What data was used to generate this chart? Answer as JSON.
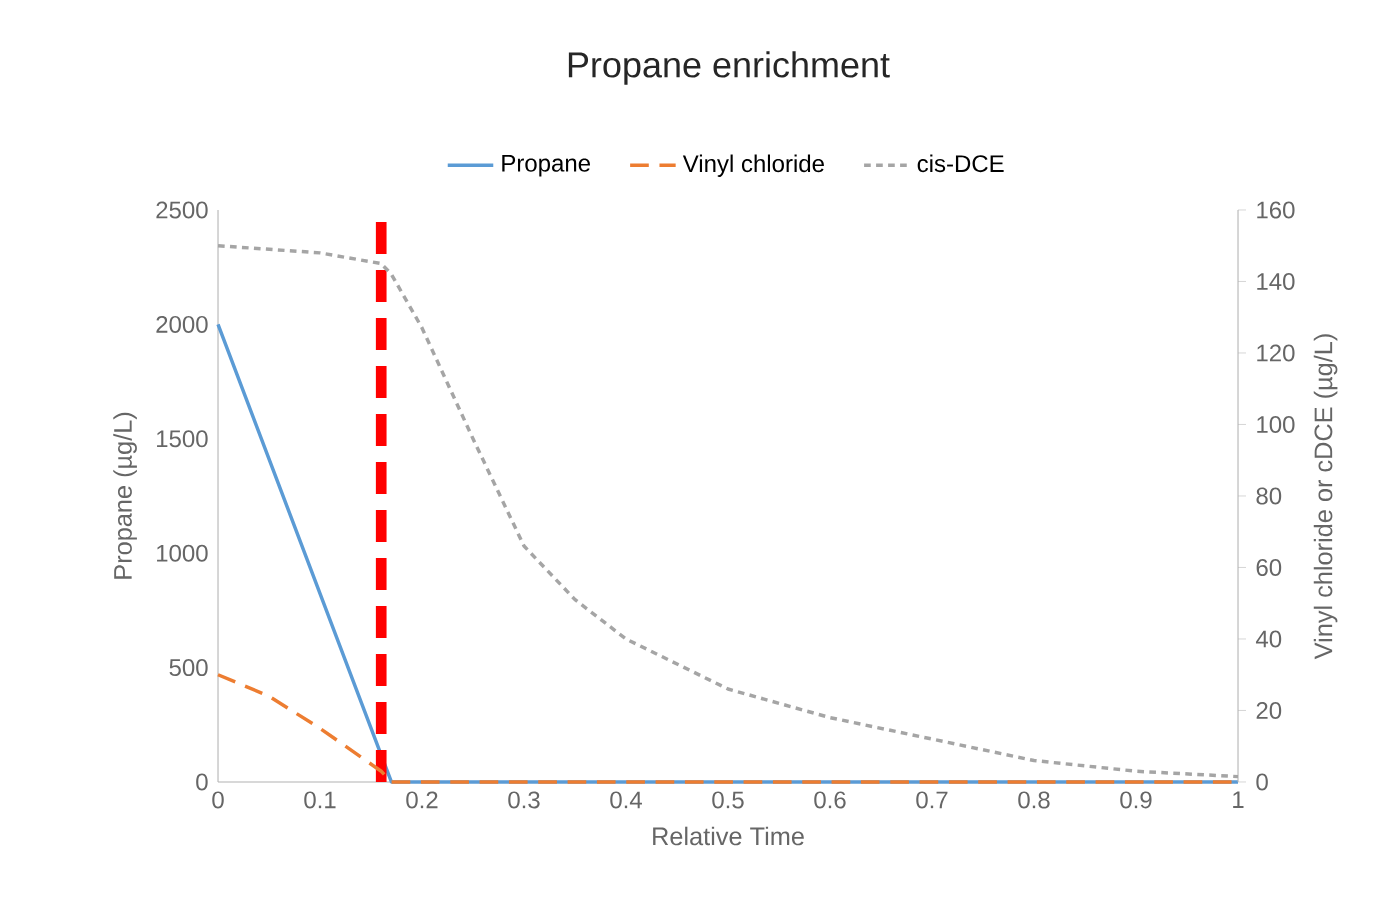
{
  "chart_data": {
    "type": "line",
    "title": "Propane enrichment",
    "xlabel": "Relative Time",
    "ylabel": "Propane (µg/L)",
    "y2label": "Vinyl chloride or cDCE (µg/L)",
    "xlim": [
      0,
      1
    ],
    "xticks": [
      0,
      0.1,
      0.2,
      0.3,
      0.4,
      0.5,
      0.6,
      0.7,
      0.8,
      0.9,
      1
    ],
    "ylim": [
      0,
      2500
    ],
    "yticks": [
      0,
      500,
      1000,
      1500,
      2000,
      2500
    ],
    "y2lim": [
      0,
      160
    ],
    "y2ticks": [
      0,
      20,
      40,
      60,
      80,
      100,
      120,
      140,
      160
    ],
    "legend": "top",
    "grid": false,
    "marker": "none",
    "series": [
      {
        "name": "Propane",
        "color": "#5b9bd5",
        "line_style": "solid",
        "x": [
          0,
          0.17,
          1
        ],
        "values": [
          2000,
          0,
          0
        ]
      },
      {
        "name": "Vinyl chloride",
        "color": "#ed7d31",
        "line_style": "dashed",
        "axis": "y2",
        "x": [
          0,
          0.05,
          0.1,
          0.16,
          0.17,
          1
        ],
        "values": [
          30,
          24,
          15,
          3,
          0,
          0
        ]
      },
      {
        "name": "cis-DCE",
        "color": "#a5a5a5",
        "line_style": "dotted",
        "axis": "y2",
        "x": [
          0,
          0.1,
          0.16,
          0.17,
          0.2,
          0.25,
          0.3,
          0.35,
          0.4,
          0.5,
          0.6,
          0.7,
          0.8,
          0.9,
          1
        ],
        "values": [
          150,
          148,
          145,
          142,
          127,
          96,
          66,
          51,
          40,
          26,
          18,
          12,
          6,
          3,
          1.5
        ]
      }
    ],
    "ref_lines": [
      {
        "axis": "x",
        "value": 0.16,
        "color": "#ff0000",
        "line_style": "dashed"
      }
    ]
  }
}
